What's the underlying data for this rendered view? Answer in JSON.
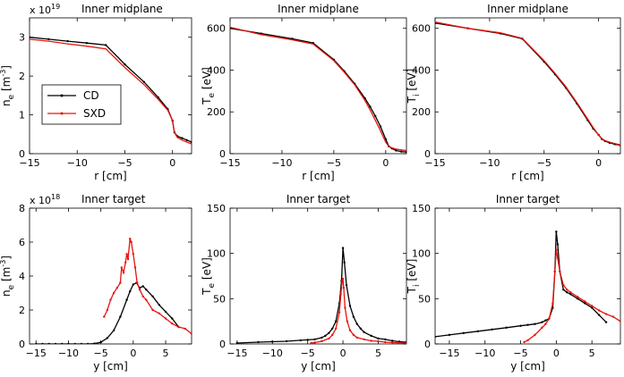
{
  "figure": {
    "series_colors": {
      "CD": "#000000",
      "SXD": "#e8130c"
    }
  },
  "chart_data": [
    {
      "id": "ne-mid",
      "type": "line",
      "title": "Inner midplane",
      "scale_label": "x 10",
      "scale_exp": "19",
      "xlabel": "r [cm]",
      "ylabel_parts": [
        "n",
        "e",
        " [m",
        "-3",
        "]"
      ],
      "xlim": [
        -15,
        2
      ],
      "ylim": [
        0,
        3.5
      ],
      "xticks": [
        -15,
        -10,
        -5,
        0
      ],
      "yticks": [
        0,
        1,
        2,
        3
      ],
      "legend": {
        "position": "center-left",
        "entries": [
          "CD",
          "SXD"
        ]
      },
      "series": [
        {
          "name": "CD",
          "markers": true,
          "x": [
            -15,
            -13,
            -11,
            -9,
            -7,
            -5,
            -3,
            -1.5,
            -0.5,
            0,
            0.2,
            0.5,
            1,
            1.5,
            2
          ],
          "y": [
            3.0,
            2.95,
            2.9,
            2.85,
            2.8,
            2.3,
            1.85,
            1.45,
            1.15,
            0.85,
            0.55,
            0.45,
            0.4,
            0.35,
            0.3
          ]
        },
        {
          "name": "SXD",
          "markers": false,
          "x": [
            -15,
            -13,
            -11,
            -9,
            -7,
            -5,
            -3,
            -1.5,
            -0.5,
            0,
            0.2,
            0.5,
            1,
            1.5,
            2
          ],
          "y": [
            2.95,
            2.9,
            2.83,
            2.77,
            2.7,
            2.22,
            1.78,
            1.4,
            1.12,
            0.85,
            0.55,
            0.42,
            0.35,
            0.3,
            0.25
          ]
        }
      ]
    },
    {
      "id": "te-mid",
      "type": "line",
      "title": "Inner midplane",
      "xlabel": "r [cm]",
      "ylabel_parts": [
        "T",
        "e",
        " [eV]"
      ],
      "xlim": [
        -15,
        2
      ],
      "ylim": [
        0,
        650
      ],
      "xticks": [
        -15,
        -10,
        -5,
        0
      ],
      "yticks": [
        0,
        200,
        400,
        600
      ],
      "series": [
        {
          "name": "CD",
          "markers": true,
          "x": [
            -15,
            -12,
            -9,
            -7,
            -5,
            -4,
            -3,
            -2,
            -1.5,
            -1,
            -0.5,
            0,
            0.3,
            0.6,
            1,
            1.5,
            2
          ],
          "y": [
            600,
            575,
            550,
            530,
            450,
            395,
            335,
            265,
            225,
            180,
            130,
            70,
            35,
            25,
            15,
            10,
            8
          ]
        },
        {
          "name": "SXD",
          "markers": false,
          "x": [
            -15,
            -12,
            -9,
            -7,
            -5,
            -4,
            -3,
            -2,
            -1.5,
            -1,
            -0.5,
            0,
            0.3,
            0.6,
            1,
            1.5,
            2
          ],
          "y": [
            605,
            570,
            545,
            525,
            445,
            390,
            330,
            255,
            210,
            160,
            110,
            55,
            35,
            28,
            22,
            18,
            15
          ]
        }
      ]
    },
    {
      "id": "ti-mid",
      "type": "line",
      "title": "Inner midplane",
      "xlabel": "r [cm]",
      "ylabel_parts": [
        "T",
        "i",
        " [eV]"
      ],
      "xlim": [
        -15,
        2
      ],
      "ylim": [
        0,
        650
      ],
      "xticks": [
        -15,
        -10,
        -5,
        0
      ],
      "yticks": [
        0,
        200,
        400,
        600
      ],
      "series": [
        {
          "name": "CD",
          "markers": true,
          "x": [
            -15,
            -12,
            -9,
            -7,
            -5,
            -4,
            -3,
            -2,
            -1,
            -0.5,
            0,
            0.3,
            0.6,
            1,
            1.5,
            2
          ],
          "y": [
            625,
            600,
            575,
            550,
            440,
            380,
            315,
            240,
            160,
            120,
            90,
            70,
            60,
            52,
            45,
            40
          ]
        },
        {
          "name": "SXD",
          "markers": false,
          "x": [
            -15,
            -12,
            -9,
            -7,
            -5,
            -4,
            -3,
            -2,
            -1,
            -0.5,
            0,
            0.3,
            0.6,
            1,
            1.5,
            2
          ],
          "y": [
            630,
            600,
            578,
            552,
            445,
            385,
            320,
            245,
            165,
            125,
            90,
            72,
            62,
            55,
            48,
            42
          ]
        }
      ]
    },
    {
      "id": "ne-tgt",
      "type": "line",
      "title": "Inner target",
      "scale_label": "x 10",
      "scale_exp": "18",
      "xlabel": "y [cm]",
      "ylabel_parts": [
        "n",
        "e",
        " [m",
        "-3",
        "]"
      ],
      "xlim": [
        -16,
        9
      ],
      "ylim": [
        0,
        8
      ],
      "xticks": [
        -15,
        -10,
        -5,
        0,
        5
      ],
      "yticks": [
        0,
        2,
        4,
        6,
        8
      ],
      "series": [
        {
          "name": "CD",
          "markers": true,
          "x": [
            -15,
            -14,
            -13,
            -12,
            -11,
            -10,
            -9,
            -8,
            -7,
            -6,
            -5,
            -4,
            -3,
            -2,
            -1,
            -0.5,
            0,
            0.5,
            1,
            1.5,
            2,
            3,
            4,
            5,
            6,
            7
          ],
          "y": [
            0,
            0,
            0,
            0,
            0,
            0,
            0,
            0,
            0,
            0.02,
            0.1,
            0.35,
            0.8,
            1.6,
            2.6,
            3.1,
            3.5,
            3.6,
            3.3,
            3.4,
            3.2,
            2.8,
            2.3,
            1.9,
            1.5,
            1.0
          ]
        },
        {
          "name": "SXD",
          "markers": true,
          "x": [
            -4.5,
            -4,
            -3.5,
            -3,
            -2.5,
            -2,
            -1.8,
            -1.5,
            -1.2,
            -1,
            -0.8,
            -0.5,
            -0.3,
            0,
            0.3,
            0.6,
            1,
            1.5,
            2,
            3,
            4,
            5,
            6,
            7,
            8,
            9
          ],
          "y": [
            1.6,
            2.0,
            2.6,
            3.0,
            3.3,
            3.6,
            4.5,
            4.2,
            4.8,
            5.3,
            5.0,
            6.2,
            6.0,
            5.3,
            4.5,
            3.6,
            3.2,
            2.8,
            2.6,
            2.0,
            1.8,
            1.5,
            1.2,
            1.0,
            0.9,
            0.6
          ]
        }
      ]
    },
    {
      "id": "te-tgt",
      "type": "line",
      "title": "Inner target",
      "xlabel": "y [cm]",
      "ylabel_parts": [
        "T",
        "e",
        " [eV]"
      ],
      "xlim": [
        -16,
        9
      ],
      "ylim": [
        0,
        150
      ],
      "xticks": [
        -15,
        -10,
        -5,
        0,
        5
      ],
      "yticks": [
        0,
        50,
        100,
        150
      ],
      "series": [
        {
          "name": "CD",
          "markers": true,
          "x": [
            -15,
            -12,
            -10,
            -8,
            -6,
            -5,
            -4,
            -3,
            -2.5,
            -2,
            -1.5,
            -1,
            -0.5,
            -0.2,
            0,
            0.2,
            0.5,
            1,
            1.5,
            2,
            2.5,
            3,
            4,
            5,
            6,
            7,
            8,
            9
          ],
          "y": [
            1,
            2,
            2.5,
            3,
            4,
            4.5,
            5,
            7,
            9,
            12,
            17,
            25,
            45,
            70,
            106,
            90,
            65,
            42,
            30,
            22,
            17,
            13,
            9,
            6,
            5,
            3.5,
            2.5,
            2
          ]
        },
        {
          "name": "SXD",
          "markers": true,
          "x": [
            -4.5,
            -4,
            -3,
            -2,
            -1.5,
            -1,
            -0.5,
            -0.3,
            -0.1,
            0,
            0.1,
            0.3,
            0.6,
            1,
            1.5,
            2,
            3,
            4,
            5,
            6,
            7,
            8,
            9
          ],
          "y": [
            1,
            1.5,
            3,
            6,
            10,
            17,
            35,
            55,
            70,
            72,
            62,
            40,
            25,
            15,
            10,
            7,
            5,
            3.5,
            3,
            2,
            1.5,
            1.2,
            1
          ]
        }
      ]
    },
    {
      "id": "ti-tgt",
      "type": "line",
      "title": "Inner target",
      "xlabel": "y [cm]",
      "ylabel_parts": [
        "T",
        "i",
        " [eV]"
      ],
      "xlim": [
        -17,
        9
      ],
      "ylim": [
        0,
        150
      ],
      "xticks": [
        -15,
        -10,
        -5,
        0,
        5
      ],
      "yticks": [
        0,
        50,
        100,
        150
      ],
      "series": [
        {
          "name": "CD",
          "markers": true,
          "x": [
            -17,
            -15,
            -13,
            -11,
            -9,
            -7,
            -5,
            -4,
            -3,
            -2,
            -1.5,
            -1,
            -0.5,
            -0.2,
            0,
            0.2,
            0.5,
            1,
            1.5,
            2,
            3,
            4,
            5,
            6,
            7
          ],
          "y": [
            8,
            10,
            12,
            14,
            16,
            18,
            20,
            21,
            22,
            24,
            26,
            28,
            40,
            80,
            124,
            110,
            80,
            60,
            57,
            55,
            50,
            45,
            40,
            32,
            24
          ]
        },
        {
          "name": "SXD",
          "markers": true,
          "x": [
            -4.5,
            -4,
            -3,
            -2,
            -1.5,
            -1,
            -0.5,
            -0.2,
            0,
            0.2,
            0.5,
            1,
            1.5,
            2,
            3,
            4,
            5,
            6,
            7,
            8,
            9
          ],
          "y": [
            2,
            4,
            10,
            18,
            22,
            28,
            45,
            80,
            104,
            95,
            80,
            65,
            60,
            57,
            52,
            47,
            42,
            37,
            33,
            30,
            25
          ]
        }
      ]
    }
  ]
}
